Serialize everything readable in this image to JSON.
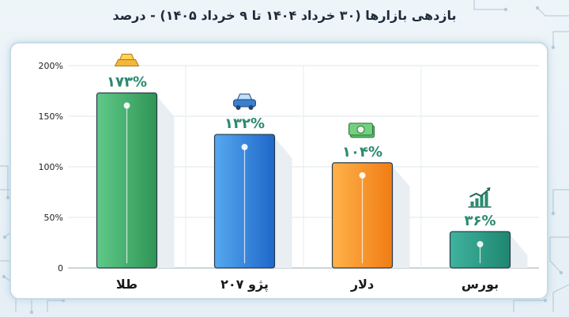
{
  "title": "بازدهی بازارها (۳۰ خرداد ۱۴۰۴ تا ۹ خرداد ۱۴۰۵) - درصد",
  "chart_data": {
    "type": "bar",
    "categories": [
      "طلا",
      "پژو ۲۰۷",
      "دلار",
      "بورس"
    ],
    "values": [
      173,
      132,
      104,
      36
    ],
    "value_labels": [
      "۱۷۳%",
      "۱۳۲%",
      "۱۰۴%",
      "۳۶%"
    ],
    "icons": [
      "gold-bars-icon",
      "car-icon",
      "cash-icon",
      "growth-chart-icon"
    ],
    "colors": {
      "gold": [
        "#5fc988",
        "#2f9556"
      ],
      "peugeot": [
        "#55a9f0",
        "#1f67c9"
      ],
      "dollar": [
        "#ffb24a",
        "#f07c14"
      ],
      "bourse": [
        "#3fb39d",
        "#1f8670"
      ],
      "label": "#2a8a6e"
    },
    "yticks": [
      "0",
      "50%",
      "100%",
      "150%",
      "200%"
    ],
    "ylim": [
      0,
      200
    ],
    "grid": true,
    "legend": "none",
    "xlabel": "",
    "ylabel": ""
  }
}
